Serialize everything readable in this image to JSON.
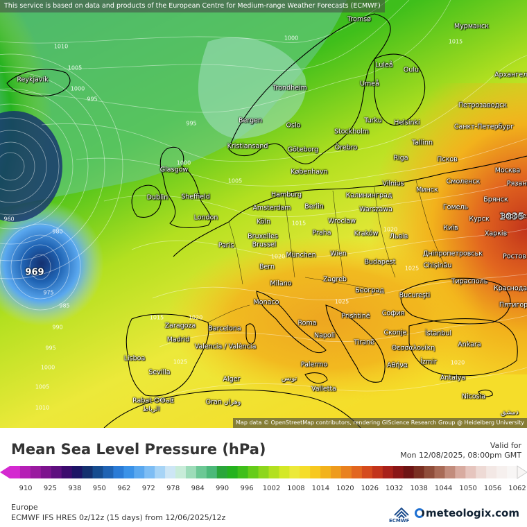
{
  "attribution_top": "This service is based on data and products of the European Centre for Medium-range Weather Forecasts (ECMWF)",
  "attribution_bottom": "Map data © OpenStreetMap contributors, rendering GIScience Research Group @ Heidelberg University",
  "title": "Mean Sea Level Pressure (hPa)",
  "valid_label": "Valid for",
  "valid_date": "Mon 12/08/2025, 08:00pm GMT",
  "region": "Europe",
  "model": "ECMWF IFS HRES 0z/12z (15 days) from 12/06/2025/12z",
  "brand": "meteologix.com",
  "ecmwf_logo_text": "ECMWF",
  "legend": {
    "tick_labels": [
      "910",
      "925",
      "938",
      "950",
      "962",
      "972",
      "978",
      "984",
      "990",
      "996",
      "1002",
      "1008",
      "1014",
      "1020",
      "1026",
      "1032",
      "1038",
      "1044",
      "1050",
      "1056",
      "1062"
    ],
    "colors": [
      "#d429d0",
      "#b51fb5",
      "#9a1aa0",
      "#7d138e",
      "#5e0f7f",
      "#3c0b6e",
      "#1d1466",
      "#14306f",
      "#164c8f",
      "#1f63b3",
      "#2a7bd6",
      "#3a92e8",
      "#5aa8ef",
      "#7dbdf4",
      "#a7d4f6",
      "#cde6f5",
      "#c8ecd9",
      "#9ddcb9",
      "#6cc895",
      "#4cb97a",
      "#2aa63b",
      "#25b21f",
      "#3fbf1b",
      "#66cc1a",
      "#8dd61d",
      "#b3e020",
      "#d4e826",
      "#ece93a",
      "#f5dd2a",
      "#f7c81f",
      "#f2b21c",
      "#ee9b1d",
      "#e9811f",
      "#e2661f",
      "#d54b1d",
      "#c2341b",
      "#a8211a",
      "#8a1617",
      "#6e1414",
      "#7a2f22",
      "#8f4d3a",
      "#a86a56",
      "#c28c7c",
      "#d8aba0",
      "#e6c5be",
      "#eedad5",
      "#f3e8e5",
      "#f6f0ee",
      "#f8f6f5"
    ]
  },
  "lows": [
    {
      "value": "969"
    },
    {
      "value": "1035"
    }
  ],
  "isobar_labels": [
    "1010",
    "1005",
    "1000",
    "995",
    "1000",
    "995",
    "1000",
    "1005",
    "1015",
    "1020",
    "1025",
    "1015",
    "1020",
    "1025",
    "1025",
    "1020",
    "960",
    "980",
    "975",
    "985",
    "990",
    "995",
    "1000",
    "1005",
    "1010",
    "1020",
    "1015"
  ],
  "cities": [
    "Reykjavík",
    "Tromsø",
    "Мурманск",
    "Luleå",
    "Oulu",
    "Umeå",
    "Trondheim",
    "Архангельск",
    "Петрозаводск",
    "Bergen",
    "Oslo",
    "Turku",
    "Helsinki",
    "Санкт-Петербург",
    "Stockholm",
    "Kristiansand",
    "Göteborg",
    "Örebro",
    "Tallinn",
    "Псков",
    "Glasgow",
    "København",
    "Riga",
    "Москва",
    "Dublin",
    "Sheffield",
    "Hamburg",
    "Vilnius",
    "Минск",
    "Смоленск",
    "Рязань",
    "Amsterdam",
    "Berlin",
    "Калининград",
    "Брянск",
    "London",
    "Köln",
    "Warszawa",
    "Гомель",
    "Курск",
    "Воронеж",
    "Bruxelles",
    "Brussel",
    "Praha",
    "Wrocław",
    "Kraków",
    "Львів",
    "Київ",
    "Харків",
    "Paris",
    "München",
    "Wien",
    "Дніпропетровськ",
    "Ростов",
    "Bern",
    "Budapest",
    "Chișinău",
    "Milano",
    "Zagreb",
    "Тирасполь",
    "Краснодар",
    "Monaco",
    "Београд",
    "Bucureşti",
    "Пятигорск",
    "Roma",
    "Prishtinë",
    "София",
    "Zaragoza",
    "Barcelona",
    "Скопје",
    "İstanbul",
    "Madrid",
    "Valencia / València",
    "Napoli",
    "Tiranë",
    "Θεσσαλονίκη",
    "Ankara",
    "Lisboa",
    "Αθήνα",
    "İzmir",
    "Palermo",
    "Sevilla",
    "Alger",
    "تونس",
    "Valletta",
    "Antalya",
    "Rabat ⵔⴱⴰⵟ",
    "الرباط",
    "Oran وهران",
    "Nicosia",
    "دمشق"
  ]
}
